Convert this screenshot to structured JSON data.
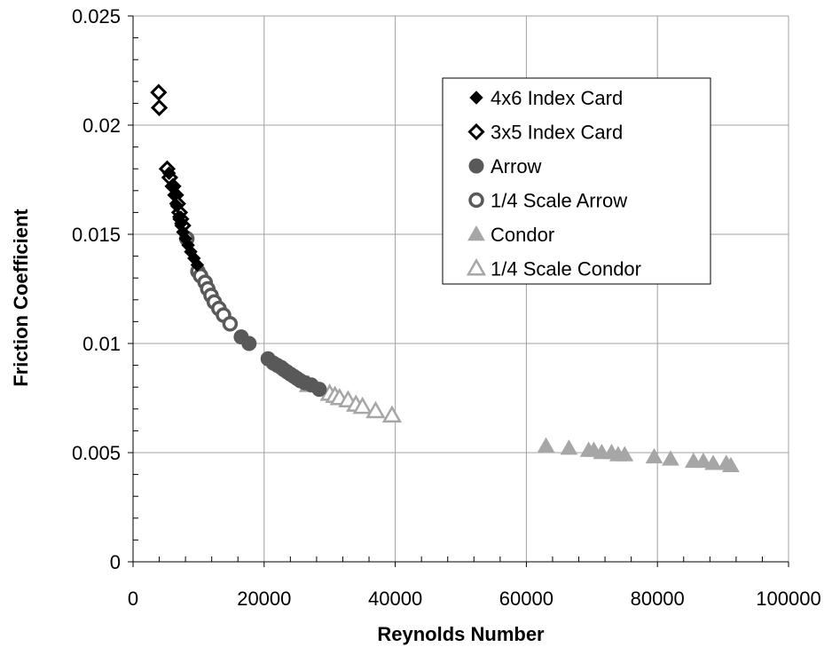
{
  "chart_data": {
    "type": "scatter",
    "xlabel": "Reynolds Number",
    "ylabel": "Friction Coefficient",
    "xlim": [
      0,
      100000
    ],
    "ylim": [
      0,
      0.025
    ],
    "x_ticks": [
      0,
      20000,
      40000,
      60000,
      80000,
      100000
    ],
    "x_tick_labels": [
      "0",
      "20000",
      "40000",
      "60000",
      "80000",
      "100000"
    ],
    "y_ticks": [
      0,
      0.005,
      0.01,
      0.015,
      0.02,
      0.025
    ],
    "y_tick_labels": [
      "0",
      "0.005",
      "0.01",
      "0.015",
      "0.02",
      "0.025"
    ],
    "grid": true,
    "legend_position": "top-right",
    "series": [
      {
        "name": "4x6 Index Card",
        "marker": "diamond-filled",
        "color": "#000000",
        "points": [
          [
            5500,
            0.0178
          ],
          [
            6000,
            0.0172
          ],
          [
            6300,
            0.0168
          ],
          [
            6700,
            0.0163
          ],
          [
            7000,
            0.0158
          ],
          [
            7300,
            0.0155
          ],
          [
            7600,
            0.0151
          ],
          [
            8000,
            0.0148
          ],
          [
            8400,
            0.0145
          ],
          [
            8800,
            0.0142
          ],
          [
            9300,
            0.0139
          ],
          [
            9800,
            0.0136
          ]
        ]
      },
      {
        "name": "3x5 Index Card",
        "marker": "diamond-open",
        "color": "#000000",
        "points": [
          [
            3900,
            0.0215
          ],
          [
            4000,
            0.0208
          ],
          [
            5200,
            0.018
          ],
          [
            5600,
            0.0176
          ],
          [
            6100,
            0.0172
          ],
          [
            6500,
            0.0168
          ],
          [
            6800,
            0.0164
          ],
          [
            7100,
            0.016
          ],
          [
            7300,
            0.0157
          ],
          [
            7600,
            0.0154
          ]
        ]
      },
      {
        "name": "Arrow",
        "marker": "circle-filled",
        "color": "#595959",
        "points": [
          [
            16500,
            0.0103
          ],
          [
            17700,
            0.01
          ],
          [
            20600,
            0.0093
          ],
          [
            21400,
            0.0091
          ],
          [
            22000,
            0.009
          ],
          [
            22600,
            0.0089
          ],
          [
            23000,
            0.0088
          ],
          [
            23500,
            0.0087
          ],
          [
            24000,
            0.0086
          ],
          [
            24500,
            0.0085
          ],
          [
            25000,
            0.0084
          ],
          [
            25500,
            0.0083
          ],
          [
            26200,
            0.0082
          ],
          [
            27200,
            0.0081
          ],
          [
            28400,
            0.0079
          ]
        ]
      },
      {
        "name": "1/4 Scale Arrow",
        "marker": "circle-open",
        "color": "#595959",
        "points": [
          [
            8200,
            0.0148
          ],
          [
            9900,
            0.0133
          ],
          [
            10300,
            0.0131
          ],
          [
            11000,
            0.0128
          ],
          [
            11400,
            0.0125
          ],
          [
            11900,
            0.0122
          ],
          [
            12400,
            0.0119
          ],
          [
            13100,
            0.0116
          ],
          [
            13800,
            0.0113
          ],
          [
            14800,
            0.0109
          ]
        ]
      },
      {
        "name": "Condor",
        "marker": "triangle-filled",
        "color": "#a6a6a6",
        "points": [
          [
            63000,
            0.0053
          ],
          [
            66500,
            0.0052
          ],
          [
            69500,
            0.0051
          ],
          [
            70300,
            0.0051
          ],
          [
            71500,
            0.005
          ],
          [
            73000,
            0.005
          ],
          [
            74000,
            0.0049
          ],
          [
            75000,
            0.0049
          ],
          [
            79500,
            0.0048
          ],
          [
            82000,
            0.0047
          ],
          [
            85500,
            0.0046
          ],
          [
            87000,
            0.0046
          ],
          [
            88500,
            0.0045
          ],
          [
            90500,
            0.0045
          ],
          [
            91200,
            0.0044
          ]
        ]
      },
      {
        "name": "1/4 Scale Condor",
        "marker": "triangle-open",
        "color": "#a6a6a6",
        "points": [
          [
            26800,
            0.0081
          ],
          [
            30000,
            0.0077
          ],
          [
            30800,
            0.0076
          ],
          [
            31500,
            0.0075
          ],
          [
            32800,
            0.0074
          ],
          [
            34000,
            0.0072
          ],
          [
            35000,
            0.0071
          ],
          [
            37000,
            0.0069
          ],
          [
            39500,
            0.0067
          ]
        ]
      }
    ]
  }
}
